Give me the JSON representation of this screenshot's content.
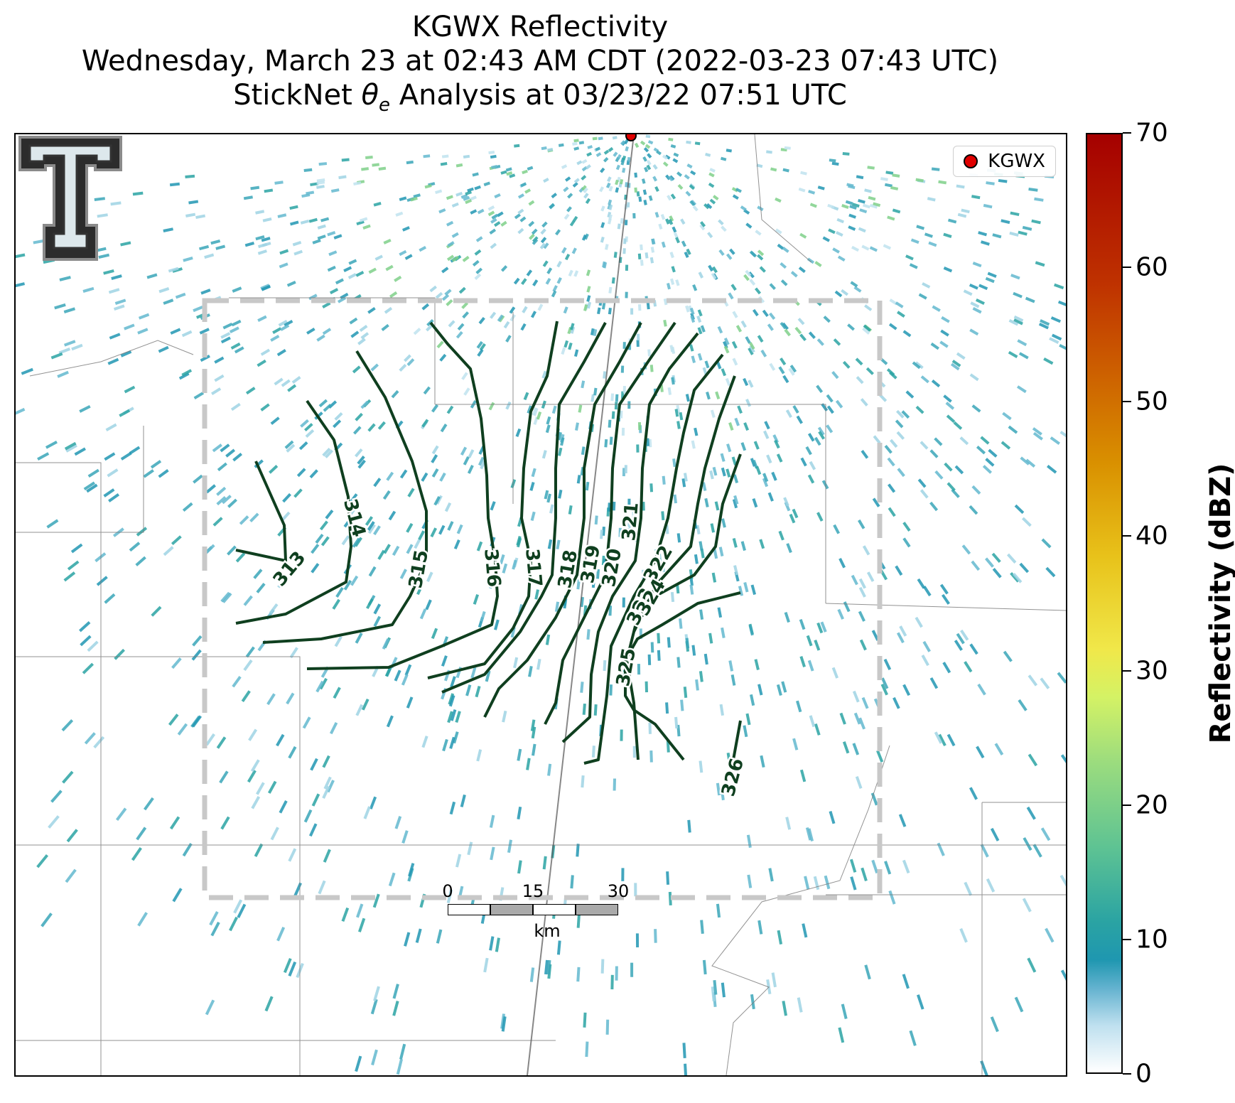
{
  "title": {
    "line1": "KGWX Reflectivity",
    "line2": "Wednesday, March 23 at 02:43 AM CDT (2022-03-23 07:43 UTC)",
    "line3_prefix": "StickNet ",
    "line3_theta": "θ",
    "line3_sub": "e",
    "line3_suffix": " Analysis at 03/23/22 07:51 UTC"
  },
  "legend": {
    "radar_label": "KGWX",
    "radar_marker_color": "#e00000"
  },
  "contours": {
    "color": "#0f3f1f",
    "labels": [
      "313",
      "314",
      "315",
      "316",
      "317",
      "318",
      "319",
      "320",
      "321",
      "322",
      "323",
      "324",
      "325",
      "326"
    ]
  },
  "scale_bar": {
    "ticks": [
      "0",
      "15",
      "30"
    ],
    "unit": "km"
  },
  "colorbar": {
    "title": "Reflectivity (dBZ)",
    "min": 0,
    "max": 70,
    "ticks": [
      "0",
      "10",
      "20",
      "30",
      "40",
      "50",
      "60",
      "70"
    ]
  },
  "colors": {
    "reflectivity_low": "#2196b3",
    "reflectivity_mid": "#7fd08a",
    "analysis_box": "#c8c8c8"
  }
}
